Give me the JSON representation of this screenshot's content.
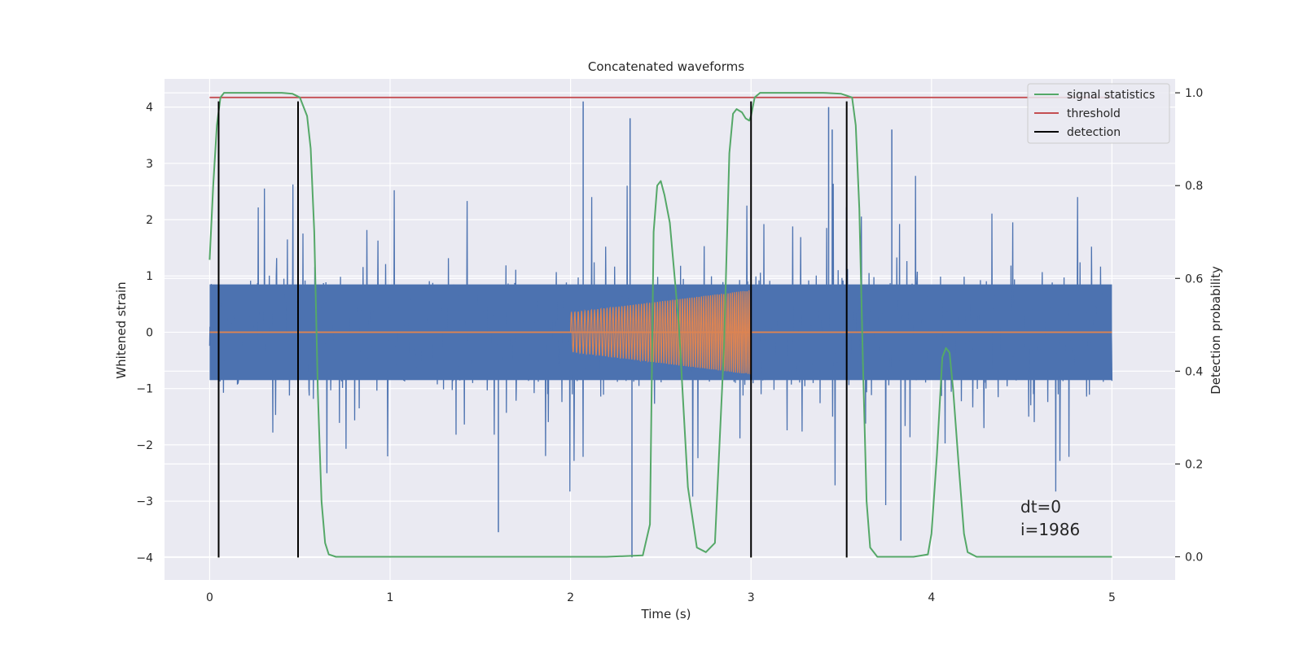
{
  "chart_data": {
    "type": "line",
    "title": "Concatenated waveforms",
    "xlabel": "Time (s)",
    "ylabel": "Whitened strain",
    "y2label": "Detection probability",
    "xlim": [
      -0.25,
      5.35
    ],
    "ylim": [
      -4.4,
      4.5
    ],
    "y2lim": [
      -0.05,
      1.03
    ],
    "xticks": [
      0,
      1,
      2,
      3,
      4,
      5
    ],
    "yticks": [
      -4,
      -3,
      -2,
      -1,
      0,
      1,
      2,
      3,
      4
    ],
    "y2ticks": [
      0.0,
      0.2,
      0.4,
      0.6,
      0.8,
      1.0
    ],
    "xtick_labels": [
      "0",
      "1",
      "2",
      "3",
      "4",
      "5"
    ],
    "ytick_labels": [
      "−4",
      "−3",
      "−2",
      "−1",
      "0",
      "1",
      "2",
      "3",
      "4"
    ],
    "y2tick_labels": [
      "0.0",
      "0.2",
      "0.4",
      "0.6",
      "0.8",
      "1.0"
    ],
    "grid": true,
    "legend_position": "top-right",
    "colors": {
      "strain": "#4c72b0",
      "injection": "#dd8452",
      "signal_statistics": "#55a868",
      "threshold": "#c44e52",
      "detection": "#000000",
      "axes_bg": "#eaeaf2",
      "grid": "#ffffff"
    },
    "series": [
      {
        "name": "signal statistics",
        "axis": "right",
        "x": [
          0.0,
          0.02,
          0.04,
          0.06,
          0.08,
          0.12,
          0.2,
          0.3,
          0.4,
          0.46,
          0.5,
          0.54,
          0.56,
          0.58,
          0.6,
          0.62,
          0.64,
          0.66,
          0.7,
          1.0,
          1.5,
          2.0,
          2.2,
          2.4,
          2.44,
          2.46,
          2.48,
          2.5,
          2.52,
          2.55,
          2.6,
          2.65,
          2.7,
          2.75,
          2.8,
          2.85,
          2.88,
          2.9,
          2.92,
          2.95,
          2.97,
          2.99,
          3.0,
          3.02,
          3.05,
          3.1,
          3.2,
          3.3,
          3.4,
          3.5,
          3.56,
          3.58,
          3.6,
          3.62,
          3.64,
          3.66,
          3.7,
          3.8,
          3.9,
          3.98,
          4.0,
          4.03,
          4.06,
          4.08,
          4.1,
          4.12,
          4.15,
          4.18,
          4.2,
          4.25,
          4.5,
          5.0
        ],
        "values": [
          0.64,
          0.8,
          0.93,
          0.99,
          1.0,
          1.0,
          1.0,
          1.0,
          1.0,
          0.998,
          0.99,
          0.95,
          0.88,
          0.7,
          0.35,
          0.12,
          0.03,
          0.005,
          0.0,
          0.0,
          0.0,
          0.0,
          0.0,
          0.003,
          0.07,
          0.7,
          0.8,
          0.81,
          0.78,
          0.72,
          0.5,
          0.15,
          0.02,
          0.01,
          0.03,
          0.45,
          0.87,
          0.955,
          0.965,
          0.958,
          0.945,
          0.94,
          0.95,
          0.99,
          1.0,
          1.0,
          1.0,
          1.0,
          1.0,
          0.998,
          0.99,
          0.93,
          0.75,
          0.42,
          0.12,
          0.02,
          0.0,
          0.0,
          0.0,
          0.005,
          0.05,
          0.22,
          0.43,
          0.45,
          0.44,
          0.36,
          0.2,
          0.05,
          0.01,
          0.0,
          0.0,
          0.0
        ]
      },
      {
        "name": "threshold",
        "axis": "right",
        "x": [
          0.0,
          5.0
        ],
        "values": [
          0.99,
          0.99
        ]
      },
      {
        "name": "detection",
        "axis": "left",
        "type": "vlines",
        "x": [
          0.05,
          0.49,
          3.0,
          3.53
        ],
        "ymin": -4.0,
        "ymax": 4.1
      }
    ],
    "strain": {
      "x_range": [
        0.0,
        5.0
      ],
      "band": 0.85,
      "spike_max": 4.1,
      "spike_min": -4.0
    },
    "injection": {
      "x_range": [
        2.0,
        3.0
      ],
      "amplitude_start": 0.35,
      "amplitude_end": 0.75,
      "cycles": 52
    },
    "annotation": [
      "dt=0",
      "i=1986"
    ]
  }
}
